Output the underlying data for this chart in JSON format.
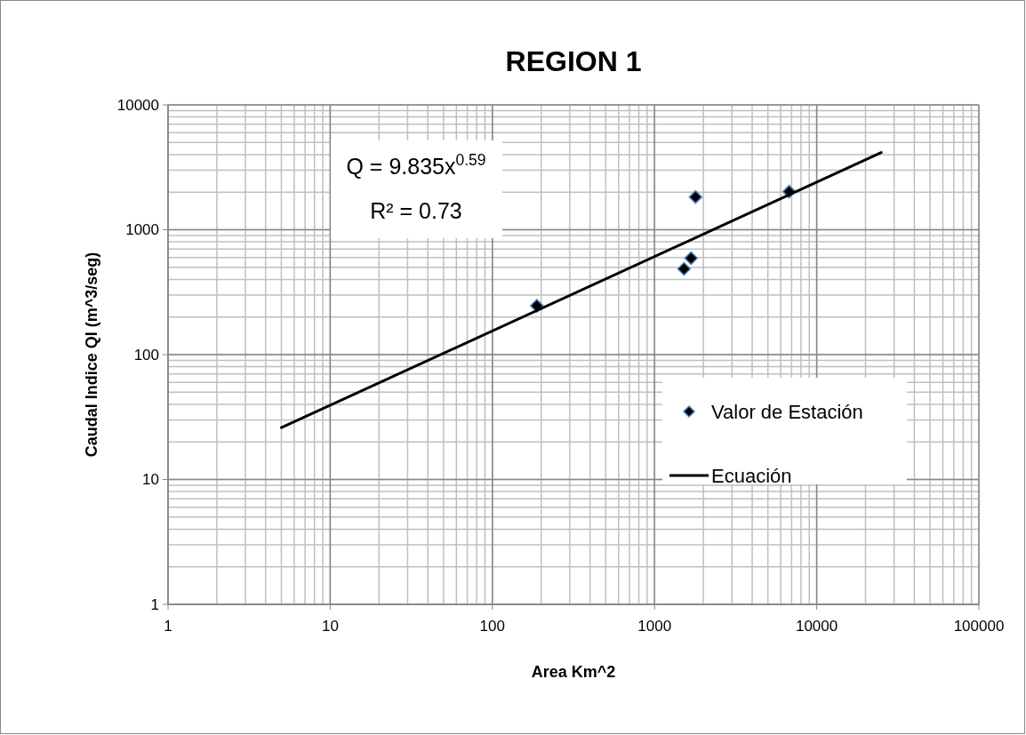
{
  "chart_data": {
    "type": "scatter",
    "title": "REGION 1",
    "xlabel": "Area Km^2",
    "ylabel": "Caudal Indice QI (m^3/seg)",
    "log": "xy",
    "grid": true,
    "legend": "right",
    "marker": "diamond",
    "xlim": [
      1,
      100000
    ],
    "xticks": [
      1,
      10,
      100,
      1000,
      10000,
      100000
    ],
    "ylim": [
      1,
      10000
    ],
    "yticks": [
      1,
      10,
      100,
      1000,
      10000
    ],
    "annotations": [
      "Q = 9.835x$^{0.59}$",
      "R² = 0.73"
    ],
    "series": [
      {
        "name": "Valor de Estación",
        "color": "#000000",
        "x": [
          188,
          1520,
          1680,
          1790,
          6760
        ],
        "values": [
          246,
          486,
          592,
          1830,
          2020
        ]
      },
      {
        "name": "Ecuación",
        "type": "line",
        "color": "#000000",
        "line_style": "solid",
        "marker": "none",
        "x": [
          5,
          25000
        ],
        "values": [
          26,
          4150
        ]
      }
    ]
  }
}
